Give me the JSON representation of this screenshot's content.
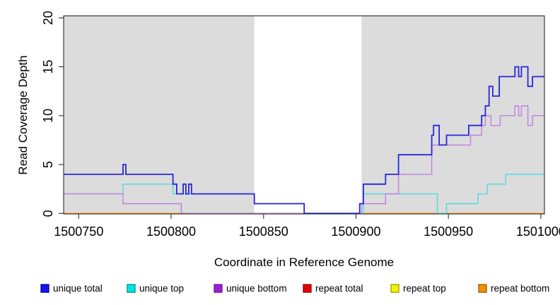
{
  "chart_data": {
    "type": "line",
    "subtype": "step-after",
    "title": "",
    "xlabel": "Coordinate in Reference Genome",
    "ylabel": "Read Coverage Depth",
    "xlim": [
      1500742,
      1501002
    ],
    "ylim": [
      0,
      20
    ],
    "x_ticks": [
      1500750,
      1500800,
      1500850,
      1500900,
      1500950,
      1501000
    ],
    "x_tick_labels": [
      "1500750",
      "1500800",
      "1500850",
      "1500900",
      "1500950",
      "1501000"
    ],
    "y_ticks": [
      0,
      5,
      10,
      15,
      20
    ],
    "y_tick_labels": [
      "0",
      "5",
      "10",
      "15",
      "20"
    ],
    "grid": false,
    "legend_position": "bottom",
    "shaded_regions": {
      "color": "#dcdcdc",
      "ranges": [
        [
          1500742,
          1500845
        ],
        [
          1500903,
          1501002
        ]
      ]
    },
    "series": [
      {
        "name": "unique total",
        "color": "#2626db",
        "legend_fill": "#1515ee",
        "legend_border": "#0000a0",
        "points": [
          [
            1500742,
            4
          ],
          [
            1500774,
            5
          ],
          [
            1500775.5,
            4
          ],
          [
            1500801,
            3
          ],
          [
            1500803,
            2
          ],
          [
            1500806.5,
            3
          ],
          [
            1500808,
            2
          ],
          [
            1500809.5,
            3
          ],
          [
            1500811,
            2
          ],
          [
            1500845,
            1
          ],
          [
            1500872,
            0
          ],
          [
            1500902,
            1
          ],
          [
            1500904,
            3
          ],
          [
            1500916,
            4
          ],
          [
            1500923,
            6
          ],
          [
            1500941,
            8
          ],
          [
            1500942,
            9
          ],
          [
            1500945,
            7
          ],
          [
            1500949,
            8
          ],
          [
            1500961,
            9
          ],
          [
            1500968,
            10
          ],
          [
            1500970,
            11
          ],
          [
            1500972,
            13
          ],
          [
            1500974,
            12
          ],
          [
            1500977.5,
            14
          ],
          [
            1500986,
            15
          ],
          [
            1500988,
            14
          ],
          [
            1500989.5,
            15
          ],
          [
            1500993,
            13
          ],
          [
            1500995.5,
            14
          ]
        ]
      },
      {
        "name": "unique top",
        "color": "#4fdcdc",
        "legend_fill": "#00e5e5",
        "legend_border": "#008b8b",
        "points": [
          [
            1500742,
            2
          ],
          [
            1500774,
            3
          ],
          [
            1500801,
            2
          ],
          [
            1500845,
            1
          ],
          [
            1500872,
            0
          ],
          [
            1500904,
            2
          ],
          [
            1500944,
            0
          ],
          [
            1500949,
            1
          ],
          [
            1500966,
            2
          ],
          [
            1500971,
            3
          ],
          [
            1500981,
            4
          ]
        ]
      },
      {
        "name": "unique bottom",
        "color": "#c07fe0",
        "legend_fill": "#a020d0",
        "legend_border": "#6a0dad",
        "points": [
          [
            1500742,
            2
          ],
          [
            1500774,
            1
          ],
          [
            1500805.5,
            0
          ],
          [
            1500903,
            1
          ],
          [
            1500916,
            2
          ],
          [
            1500923,
            4
          ],
          [
            1500941,
            7
          ],
          [
            1500962,
            8
          ],
          [
            1500968,
            9
          ],
          [
            1500970,
            10
          ],
          [
            1500973,
            9
          ],
          [
            1500978,
            10
          ],
          [
            1500986,
            11
          ],
          [
            1500988,
            10
          ],
          [
            1500989.5,
            11
          ],
          [
            1500993,
            9
          ],
          [
            1500995.5,
            10
          ]
        ]
      },
      {
        "name": "repeat total",
        "color": "#d42a2a",
        "legend_fill": "#e60000",
        "legend_border": "#8b0000",
        "points": [
          [
            1500742,
            0
          ]
        ]
      },
      {
        "name": "repeat top",
        "color": "#e8e83c",
        "legend_fill": "#f2f200",
        "legend_border": "#9a9a00",
        "points": [
          [
            1500742,
            0
          ]
        ]
      },
      {
        "name": "repeat bottom",
        "color": "#ff9717",
        "legend_fill": "#f29000",
        "legend_border": "#a05a00",
        "points": [
          [
            1500742,
            0
          ]
        ]
      }
    ]
  }
}
